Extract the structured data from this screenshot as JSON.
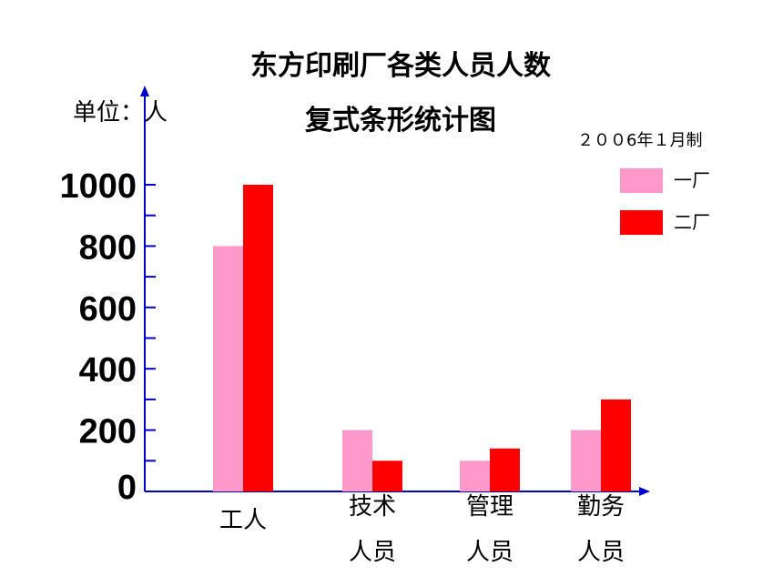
{
  "colors": {
    "axis": "#0000cc",
    "series_1": "#ff99cc",
    "series_2": "#ff0000"
  },
  "chart_data": {
    "type": "bar",
    "title": "东方印刷厂各类人员人数",
    "subtitle": "复式条形统计图",
    "unit_label": "单位：人",
    "note": "２００6年１月制",
    "categories": [
      [
        "工人"
      ],
      [
        "技术",
        "人员"
      ],
      [
        "管理",
        "人员"
      ],
      [
        "勤务",
        "人员"
      ]
    ],
    "series": [
      {
        "name": "一厂",
        "values": [
          800,
          200,
          100,
          200
        ]
      },
      {
        "name": "二厂",
        "values": [
          1000,
          100,
          140,
          300
        ]
      }
    ],
    "ylim": [
      0,
      1000
    ],
    "y_ticks": [
      "0",
      "200",
      "400",
      "600",
      "800",
      "1000"
    ],
    "y_tick_values": [
      0,
      200,
      400,
      600,
      800,
      1000
    ],
    "grid": false,
    "legend_position": "top-right"
  }
}
